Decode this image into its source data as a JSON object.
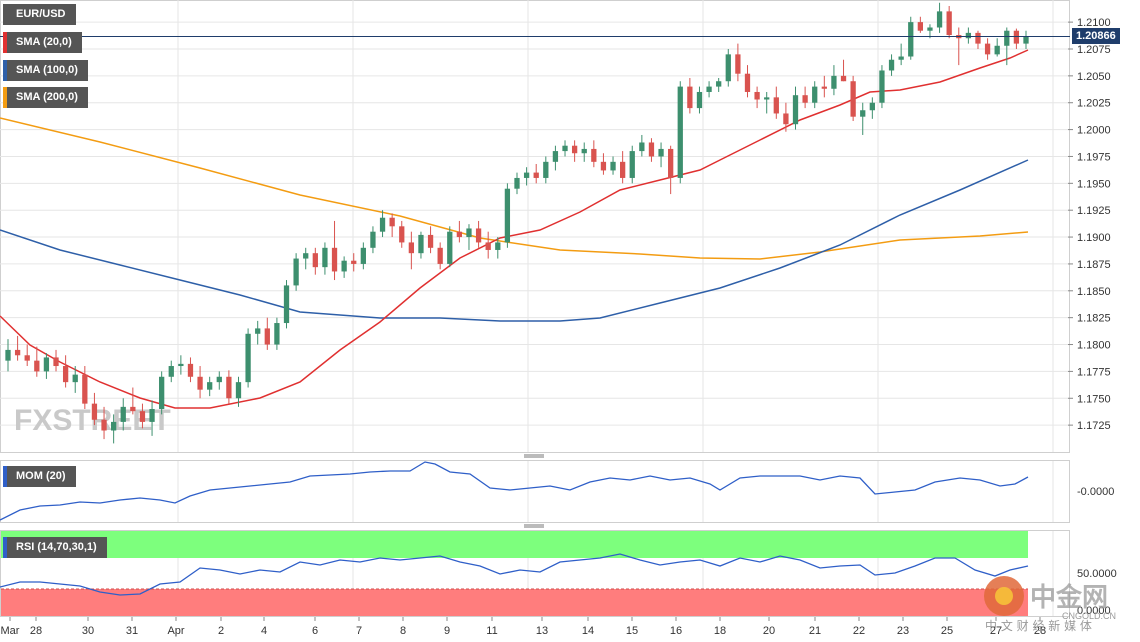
{
  "colors": {
    "bull": "#3d8f6e",
    "bear": "#d9534f",
    "sma20": "#e03030",
    "sma100": "#2e5fa8",
    "sma200": "#f39c12",
    "mom": "#2f5fc8",
    "rsi": "#2f5fc8",
    "rsi_upper": "#7dff7d",
    "rsi_lower": "#ff7d7d",
    "grid": "#e6e6e6",
    "price_line": "#1f3d6b"
  },
  "legend": {
    "symbol": "EUR/USD",
    "sma20": "SMA (20,0)",
    "sma100": "SMA (100,0)",
    "sma200": "SMA (200,0)",
    "mom": "MOM (20)",
    "rsi": "RSI (14,70,30,1)"
  },
  "watermark": {
    "brand": "FXSTREET",
    "cn_logo": "中金网",
    "cn_url": "CNGOLD.CN",
    "cn_sub": "中 文 财 经 新 媒 体"
  },
  "chart_data": {
    "type": "candlestick",
    "symbol": "EUR/USD",
    "current_price": "1.20866",
    "ylim": [
      1.17,
      1.2115
    ],
    "yticks": [
      "1.2100",
      "1.2075",
      "1.2050",
      "1.2025",
      "1.2000",
      "1.1975",
      "1.1950",
      "1.1925",
      "1.1900",
      "1.1875",
      "1.1850",
      "1.1825",
      "1.1800",
      "1.1775",
      "1.1750",
      "1.1725"
    ],
    "xticks": [
      "Mar",
      "28",
      "30",
      "31",
      "Apr",
      "2",
      "4",
      "6",
      "7",
      "8",
      "9",
      "11",
      "13",
      "14",
      "15",
      "16",
      "18",
      "20",
      "21",
      "22",
      "23",
      "25",
      "27",
      "28"
    ],
    "candles": [
      [
        1.1785,
        1.1805,
        1.1775,
        1.1795
      ],
      [
        1.1795,
        1.1808,
        1.1785,
        1.179
      ],
      [
        1.179,
        1.18,
        1.178,
        1.1785
      ],
      [
        1.1785,
        1.1798,
        1.177,
        1.1775
      ],
      [
        1.1775,
        1.1792,
        1.1768,
        1.1788
      ],
      [
        1.1788,
        1.1795,
        1.1775,
        1.178
      ],
      [
        1.178,
        1.179,
        1.176,
        1.1765
      ],
      [
        1.1765,
        1.178,
        1.1755,
        1.1772
      ],
      [
        1.1772,
        1.178,
        1.174,
        1.1745
      ],
      [
        1.1745,
        1.1755,
        1.1725,
        1.173
      ],
      [
        1.173,
        1.1742,
        1.1712,
        1.172
      ],
      [
        1.172,
        1.1735,
        1.1708,
        1.1728
      ],
      [
        1.1728,
        1.175,
        1.172,
        1.1742
      ],
      [
        1.1742,
        1.176,
        1.1735,
        1.1738
      ],
      [
        1.1738,
        1.1745,
        1.1722,
        1.1728
      ],
      [
        1.1728,
        1.1748,
        1.1715,
        1.174
      ],
      [
        1.174,
        1.1775,
        1.1735,
        1.177
      ],
      [
        1.177,
        1.1785,
        1.1765,
        1.178
      ],
      [
        1.178,
        1.179,
        1.1772,
        1.1782
      ],
      [
        1.1782,
        1.1788,
        1.1765,
        1.177
      ],
      [
        1.177,
        1.178,
        1.175,
        1.1758
      ],
      [
        1.1758,
        1.177,
        1.1752,
        1.1765
      ],
      [
        1.1765,
        1.1775,
        1.1758,
        1.177
      ],
      [
        1.177,
        1.1776,
        1.1745,
        1.175
      ],
      [
        1.175,
        1.177,
        1.1742,
        1.1765
      ],
      [
        1.1765,
        1.1815,
        1.176,
        1.181
      ],
      [
        1.181,
        1.1822,
        1.18,
        1.1815
      ],
      [
        1.1815,
        1.1825,
        1.1795,
        1.18
      ],
      [
        1.18,
        1.1825,
        1.1795,
        1.182
      ],
      [
        1.182,
        1.186,
        1.1815,
        1.1855
      ],
      [
        1.1855,
        1.1885,
        1.185,
        1.188
      ],
      [
        1.188,
        1.189,
        1.187,
        1.1885
      ],
      [
        1.1885,
        1.189,
        1.1865,
        1.1872
      ],
      [
        1.1872,
        1.1895,
        1.1865,
        1.189
      ],
      [
        1.189,
        1.1915,
        1.186,
        1.1868
      ],
      [
        1.1868,
        1.1882,
        1.1862,
        1.1878
      ],
      [
        1.1878,
        1.1885,
        1.1868,
        1.1875
      ],
      [
        1.1875,
        1.1895,
        1.187,
        1.189
      ],
      [
        1.189,
        1.191,
        1.1885,
        1.1905
      ],
      [
        1.1905,
        1.1925,
        1.19,
        1.1918
      ],
      [
        1.1918,
        1.1922,
        1.19,
        1.191
      ],
      [
        1.191,
        1.1915,
        1.189,
        1.1895
      ],
      [
        1.1895,
        1.1905,
        1.187,
        1.1885
      ],
      [
        1.1885,
        1.1905,
        1.188,
        1.1902
      ],
      [
        1.1902,
        1.191,
        1.1885,
        1.189
      ],
      [
        1.189,
        1.1895,
        1.187,
        1.1875
      ],
      [
        1.1875,
        1.191,
        1.1872,
        1.1905
      ],
      [
        1.1905,
        1.1915,
        1.1895,
        1.19
      ],
      [
        1.19,
        1.1912,
        1.1888,
        1.1908
      ],
      [
        1.1908,
        1.1915,
        1.189,
        1.1895
      ],
      [
        1.1895,
        1.1905,
        1.188,
        1.1888
      ],
      [
        1.1888,
        1.19,
        1.188,
        1.1895
      ],
      [
        1.1895,
        1.195,
        1.189,
        1.1945
      ],
      [
        1.1945,
        1.196,
        1.194,
        1.1955
      ],
      [
        1.1955,
        1.1965,
        1.1948,
        1.196
      ],
      [
        1.196,
        1.1968,
        1.195,
        1.1955
      ],
      [
        1.1955,
        1.1975,
        1.195,
        1.197
      ],
      [
        1.197,
        1.1985,
        1.1962,
        1.198
      ],
      [
        1.198,
        1.199,
        1.1975,
        1.1985
      ],
      [
        1.1985,
        1.199,
        1.197,
        1.1978
      ],
      [
        1.1978,
        1.1988,
        1.197,
        1.1982
      ],
      [
        1.1982,
        1.199,
        1.1965,
        1.197
      ],
      [
        1.197,
        1.1978,
        1.1958,
        1.1962
      ],
      [
        1.1962,
        1.1975,
        1.1958,
        1.197
      ],
      [
        1.197,
        1.198,
        1.195,
        1.1955
      ],
      [
        1.1955,
        1.1985,
        1.195,
        1.198
      ],
      [
        1.198,
        1.1995,
        1.1975,
        1.1988
      ],
      [
        1.1988,
        1.1992,
        1.197,
        1.1975
      ],
      [
        1.1975,
        1.1988,
        1.1965,
        1.1982
      ],
      [
        1.1982,
        1.1985,
        1.194,
        1.1955
      ],
      [
        1.1955,
        1.2045,
        1.195,
        1.204
      ],
      [
        1.204,
        1.2048,
        1.2015,
        1.202
      ],
      [
        1.202,
        1.204,
        1.2015,
        1.2035
      ],
      [
        1.2035,
        1.2045,
        1.203,
        1.204
      ],
      [
        1.204,
        1.2048,
        1.2035,
        1.2045
      ],
      [
        1.2045,
        1.2075,
        1.204,
        1.207
      ],
      [
        1.207,
        1.208,
        1.2045,
        1.2052
      ],
      [
        1.2052,
        1.206,
        1.203,
        1.2035
      ],
      [
        1.2035,
        1.204,
        1.202,
        1.2028
      ],
      [
        1.2028,
        1.2035,
        1.2015,
        1.203
      ],
      [
        1.203,
        1.204,
        1.201,
        1.2015
      ],
      [
        1.2015,
        1.2025,
        1.1998,
        1.2005
      ],
      [
        1.2005,
        1.204,
        1.2,
        1.2032
      ],
      [
        1.2032,
        1.204,
        1.202,
        1.2025
      ],
      [
        1.2025,
        1.2045,
        1.202,
        1.204
      ],
      [
        1.204,
        1.205,
        1.203,
        1.2038
      ],
      [
        1.2038,
        1.206,
        1.2032,
        1.205
      ],
      [
        1.205,
        1.2065,
        1.2045,
        1.2045
      ],
      [
        1.2045,
        1.205,
        1.2008,
        1.2012
      ],
      [
        1.2012,
        1.2025,
        1.1995,
        1.2018
      ],
      [
        1.2018,
        1.203,
        1.201,
        1.2025
      ],
      [
        1.2025,
        1.206,
        1.202,
        1.2055
      ],
      [
        1.2055,
        1.207,
        1.205,
        1.2065
      ],
      [
        1.2065,
        1.208,
        1.206,
        1.2068
      ],
      [
        1.2068,
        1.2105,
        1.2065,
        1.21
      ],
      [
        1.21,
        1.2105,
        1.209,
        1.2092
      ],
      [
        1.2092,
        1.2098,
        1.2085,
        1.2095
      ],
      [
        1.2095,
        1.2118,
        1.209,
        1.211
      ],
      [
        1.211,
        1.2115,
        1.2085,
        1.2088
      ],
      [
        1.2088,
        1.2095,
        1.206,
        1.2085
      ],
      [
        1.2085,
        1.2095,
        1.208,
        1.209
      ],
      [
        1.209,
        1.2092,
        1.2075,
        1.208
      ],
      [
        1.208,
        1.2085,
        1.2065,
        1.207
      ],
      [
        1.207,
        1.2085,
        1.2068,
        1.2078
      ],
      [
        1.2078,
        1.2095,
        1.206,
        1.2092
      ],
      [
        1.2092,
        1.2094,
        1.2075,
        1.208
      ],
      [
        1.208,
        1.2092,
        1.2075,
        1.2087
      ]
    ],
    "mom_ytick": "-0.0000",
    "rsi_ytick_1": "50.0000",
    "rsi_ytick_2": "0.0000"
  }
}
